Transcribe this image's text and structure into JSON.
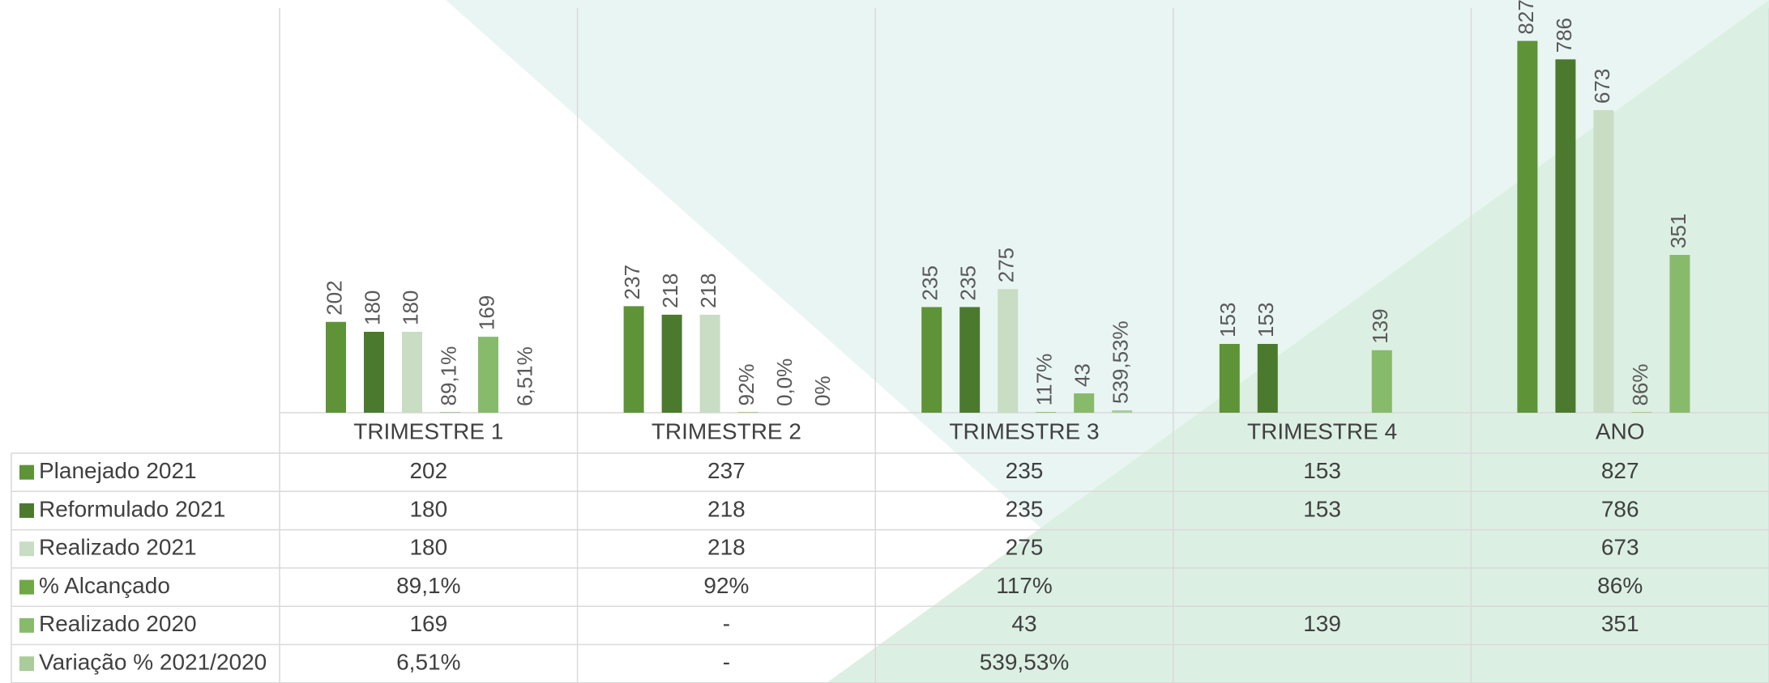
{
  "chart_data": {
    "type": "bar",
    "categories": [
      "TRIMESTRE 1",
      "TRIMESTRE 2",
      "TRIMESTRE 3",
      "TRIMESTRE 4",
      "ANO"
    ],
    "ylim": [
      0,
      900
    ],
    "y2lim": [
      0,
      90000
    ],
    "series": [
      {
        "name": "Planejado 2021",
        "color": "#5e9338",
        "values": [
          202,
          237,
          235,
          153,
          827
        ]
      },
      {
        "name": "Reformulado 2021",
        "color": "#4b7a2f",
        "values": [
          180,
          218,
          235,
          153,
          786
        ]
      },
      {
        "name": "Realizado 2021",
        "color": "#c9dcc4",
        "values": [
          180,
          218,
          275,
          null,
          673
        ]
      },
      {
        "name": "% Alcançado",
        "color": "#6fa845",
        "axis": "y2",
        "values": [
          89.1,
          92,
          117,
          null,
          86
        ],
        "value_labels": [
          "89,1%",
          "92%",
          "117%",
          null,
          "86%"
        ]
      },
      {
        "name": "Realizado 2020",
        "color": "#88ba6b",
        "values": [
          169,
          0,
          43,
          139,
          351
        ],
        "value_labels": [
          "169",
          "0,0%",
          "43",
          "139",
          "351"
        ],
        "table_labels": [
          "169",
          "-",
          "43",
          "139",
          "351"
        ]
      },
      {
        "name": "Variação % 2021/2020",
        "color": "#aacc9a",
        "axis": "y2",
        "values": [
          6.51,
          0,
          539.53,
          null,
          null
        ],
        "value_labels": [
          "6,51%",
          "0%",
          "539,53%",
          null,
          null
        ],
        "table_labels": [
          "6,51%",
          "-",
          "539,53%",
          null,
          null
        ]
      }
    ]
  }
}
